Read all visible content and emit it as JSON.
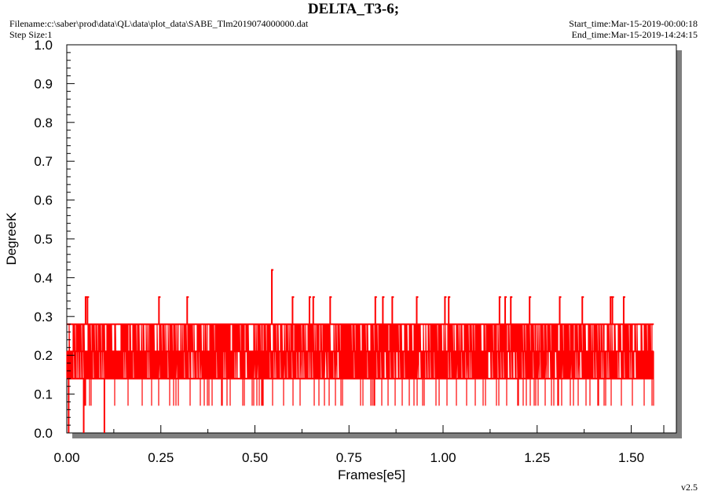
{
  "header": {
    "title": "DELTA_T3-6;",
    "filename": "Filename:c:\\saber\\prod\\data\\QL\\data\\plot_data\\SABE_Tlm2019074000000.dat",
    "step_size": "Step Size:1",
    "start_time": "Start_time:Mar-15-2019-00:00:18",
    "end_time": "End_time:Mar-15-2019-14:24:15",
    "version": "v2.5"
  },
  "chart_data": {
    "type": "line",
    "title": "DELTA_T3-6;",
    "xlabel": "Frames[e5]",
    "ylabel": "DegreeK",
    "xlim": [
      0,
      1.62
    ],
    "ylim": [
      0,
      1.0
    ],
    "x_ticks": [
      "0.00",
      "0.25",
      "0.50",
      "0.75",
      "1.00",
      "1.25",
      "1.50"
    ],
    "y_ticks": [
      "0.0",
      "0.1",
      "0.2",
      "0.3",
      "0.4",
      "0.5",
      "0.6",
      "0.7",
      "0.8",
      "0.9",
      "1.0"
    ],
    "grid": false,
    "series_color": "#ff0000",
    "series": [
      {
        "x_range": [
          0,
          1.56
        ],
        "levels": [
          0.14,
          0.21,
          0.28
        ],
        "spikes": [
          {
            "x": 0.005,
            "y": 0.0
          },
          {
            "x": 0.045,
            "y": 0.0
          },
          {
            "x": 0.1,
            "y": 0.0
          },
          {
            "x": 0.05,
            "y": 0.35
          },
          {
            "x": 0.055,
            "y": 0.35
          },
          {
            "x": 0.245,
            "y": 0.35
          },
          {
            "x": 0.32,
            "y": 0.35
          },
          {
            "x": 0.545,
            "y": 0.42
          },
          {
            "x": 0.6,
            "y": 0.35
          },
          {
            "x": 0.645,
            "y": 0.35
          },
          {
            "x": 0.655,
            "y": 0.35
          },
          {
            "x": 0.7,
            "y": 0.35
          },
          {
            "x": 0.82,
            "y": 0.35
          },
          {
            "x": 0.84,
            "y": 0.35
          },
          {
            "x": 0.865,
            "y": 0.35
          },
          {
            "x": 0.93,
            "y": 0.35
          },
          {
            "x": 1.005,
            "y": 0.35
          },
          {
            "x": 1.015,
            "y": 0.35
          },
          {
            "x": 1.15,
            "y": 0.35
          },
          {
            "x": 1.165,
            "y": 0.35
          },
          {
            "x": 1.18,
            "y": 0.35
          },
          {
            "x": 1.23,
            "y": 0.35
          },
          {
            "x": 1.31,
            "y": 0.35
          },
          {
            "x": 1.37,
            "y": 0.35
          },
          {
            "x": 1.445,
            "y": 0.35
          },
          {
            "x": 1.45,
            "y": 0.35
          },
          {
            "x": 1.48,
            "y": 0.35
          }
        ]
      }
    ]
  }
}
